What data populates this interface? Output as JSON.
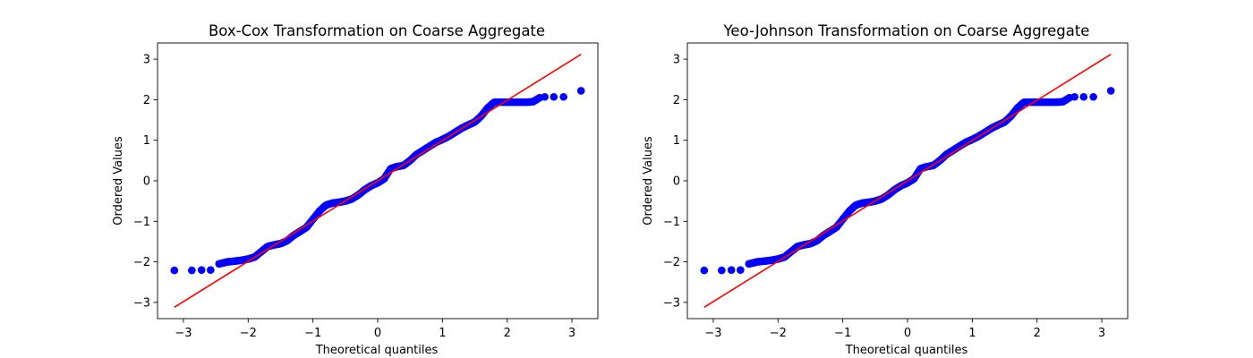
{
  "chart_data": [
    {
      "type": "scatter",
      "title": "Box-Cox Transformation on Coarse Aggregate",
      "xlabel": "Theoretical quantiles",
      "ylabel": "Ordered Values",
      "xlim": [
        -3.4,
        3.4
      ],
      "ylim": [
        -3.4,
        3.4
      ],
      "xticks": [
        -3,
        -2,
        -1,
        0,
        1,
        2,
        3
      ],
      "yticks": [
        -3,
        -2,
        -1,
        0,
        1,
        2,
        3
      ],
      "grid": false,
      "marker_color": "#0000ff",
      "fit_line_color": "#ff0000",
      "fit_line": {
        "x": [
          -3.14,
          3.14
        ],
        "y": [
          -3.12,
          3.12
        ]
      },
      "curve": {
        "x": [
          -3.14,
          -2.87,
          -2.72,
          -2.58,
          -2.45,
          -2.32,
          -2.2,
          -2.1,
          -2.0,
          -1.9,
          -1.8,
          -1.7,
          -1.6,
          -1.5,
          -1.4,
          -1.3,
          -1.2,
          -1.1,
          -1.0,
          -0.9,
          -0.8,
          -0.7,
          -0.6,
          -0.5,
          -0.4,
          -0.3,
          -0.2,
          -0.1,
          0.0,
          0.1,
          0.2,
          0.3,
          0.4,
          0.5,
          0.6,
          0.7,
          0.8,
          0.9,
          1.0,
          1.1,
          1.2,
          1.3,
          1.4,
          1.5,
          1.6,
          1.7,
          1.8,
          1.9,
          2.0,
          2.1,
          2.2,
          2.3,
          2.4,
          2.5,
          2.58,
          2.72,
          2.87,
          3.14
        ],
        "y": [
          -2.21,
          -2.21,
          -2.2,
          -2.2,
          -2.05,
          -2.0,
          -1.98,
          -1.96,
          -1.93,
          -1.88,
          -1.75,
          -1.62,
          -1.58,
          -1.55,
          -1.48,
          -1.35,
          -1.25,
          -1.15,
          -0.95,
          -0.75,
          -0.6,
          -0.55,
          -0.53,
          -0.5,
          -0.45,
          -0.35,
          -0.22,
          -0.12,
          -0.05,
          0.05,
          0.3,
          0.35,
          0.38,
          0.5,
          0.65,
          0.75,
          0.85,
          0.95,
          1.02,
          1.1,
          1.2,
          1.3,
          1.38,
          1.45,
          1.6,
          1.8,
          1.94,
          1.94,
          1.94,
          1.94,
          1.94,
          1.94,
          1.95,
          2.05,
          2.07,
          2.07,
          2.07,
          2.22
        ]
      }
    },
    {
      "type": "scatter",
      "title": "Yeo-Johnson Transformation on Coarse Aggregate",
      "xlabel": "Theoretical quantiles",
      "ylabel": "Ordered Values",
      "xlim": [
        -3.4,
        3.4
      ],
      "ylim": [
        -3.4,
        3.4
      ],
      "xticks": [
        -3,
        -2,
        -1,
        0,
        1,
        2,
        3
      ],
      "yticks": [
        -3,
        -2,
        -1,
        0,
        1,
        2,
        3
      ],
      "grid": false,
      "marker_color": "#0000ff",
      "fit_line_color": "#ff0000",
      "fit_line": {
        "x": [
          -3.14,
          3.14
        ],
        "y": [
          -3.12,
          3.12
        ]
      },
      "curve": {
        "x": [
          -3.14,
          -2.87,
          -2.72,
          -2.58,
          -2.45,
          -2.32,
          -2.2,
          -2.1,
          -2.0,
          -1.9,
          -1.8,
          -1.7,
          -1.6,
          -1.5,
          -1.4,
          -1.3,
          -1.2,
          -1.1,
          -1.0,
          -0.9,
          -0.8,
          -0.7,
          -0.6,
          -0.5,
          -0.4,
          -0.3,
          -0.2,
          -0.1,
          0.0,
          0.1,
          0.2,
          0.3,
          0.4,
          0.5,
          0.6,
          0.7,
          0.8,
          0.9,
          1.0,
          1.1,
          1.2,
          1.3,
          1.4,
          1.5,
          1.6,
          1.7,
          1.8,
          1.9,
          2.0,
          2.1,
          2.2,
          2.3,
          2.4,
          2.5,
          2.58,
          2.72,
          2.87,
          3.14
        ],
        "y": [
          -2.21,
          -2.21,
          -2.2,
          -2.2,
          -2.05,
          -2.0,
          -1.98,
          -1.96,
          -1.93,
          -1.88,
          -1.75,
          -1.62,
          -1.58,
          -1.55,
          -1.48,
          -1.35,
          -1.25,
          -1.15,
          -0.95,
          -0.75,
          -0.6,
          -0.55,
          -0.53,
          -0.5,
          -0.45,
          -0.35,
          -0.22,
          -0.12,
          -0.05,
          0.05,
          0.3,
          0.35,
          0.38,
          0.5,
          0.65,
          0.75,
          0.85,
          0.95,
          1.02,
          1.1,
          1.2,
          1.3,
          1.38,
          1.45,
          1.6,
          1.8,
          1.94,
          1.94,
          1.94,
          1.94,
          1.94,
          1.94,
          1.95,
          2.05,
          2.07,
          2.07,
          2.07,
          2.22
        ]
      }
    }
  ]
}
